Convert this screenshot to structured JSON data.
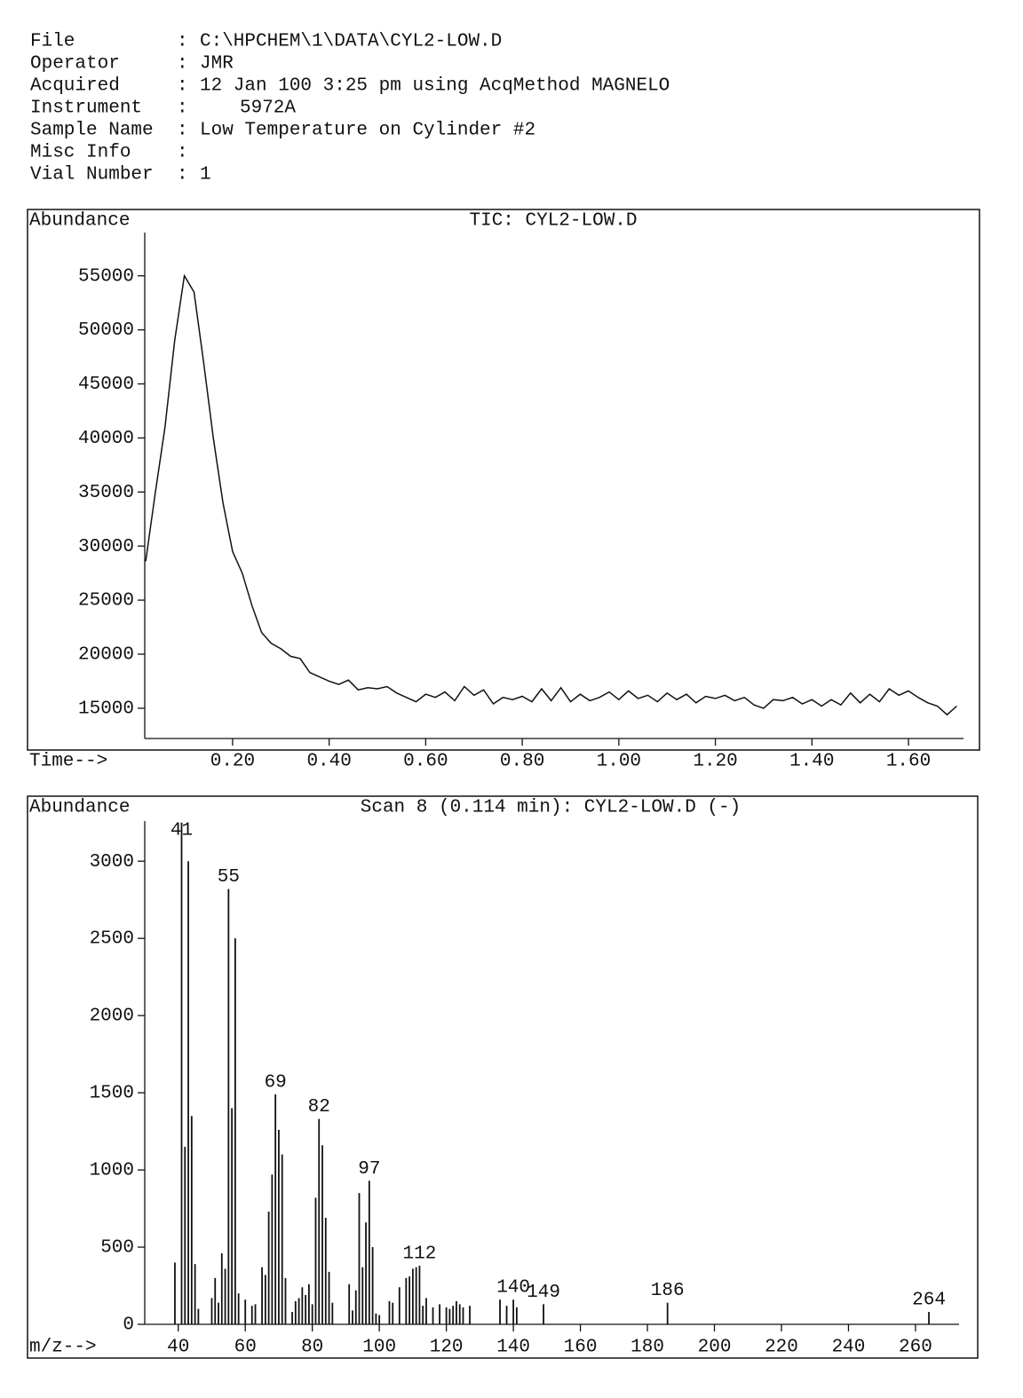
{
  "header": {
    "separator": ":",
    "fields": [
      {
        "label": "File",
        "value": "C:\\HPCHEM\\1\\DATA\\CYL2-LOW.D"
      },
      {
        "label": "Operator",
        "value": "JMR"
      },
      {
        "label": "Acquired",
        "value": "12 Jan 100   3:25 pm using AcqMethod MAGNELO"
      },
      {
        "label": "Instrument",
        "value": "5972A"
      },
      {
        "label": "Sample Name",
        "value": "Low Temperature on Cylinder #2"
      },
      {
        "label": "Misc Info"
      },
      {
        "label": "Vial Number",
        "value": "1"
      }
    ]
  },
  "chart_data": [
    {
      "type": "line",
      "title": "TIC: CYL2-LOW.D",
      "y_label": "Abundance",
      "x_label": "Time-->",
      "color": "#111111",
      "x": [
        0.02,
        0.04,
        0.06,
        0.08,
        0.1,
        0.12,
        0.14,
        0.16,
        0.18,
        0.2,
        0.22,
        0.24,
        0.26,
        0.28,
        0.3,
        0.32,
        0.34,
        0.36,
        0.38,
        0.4,
        0.42,
        0.44,
        0.46,
        0.48,
        0.5,
        0.52,
        0.54,
        0.56,
        0.58,
        0.6,
        0.62,
        0.64,
        0.66,
        0.68,
        0.7,
        0.72,
        0.74,
        0.76,
        0.78,
        0.8,
        0.82,
        0.84,
        0.86,
        0.88,
        0.9,
        0.92,
        0.94,
        0.96,
        0.98,
        1.0,
        1.02,
        1.04,
        1.06,
        1.08,
        1.1,
        1.12,
        1.14,
        1.16,
        1.18,
        1.2,
        1.22,
        1.24,
        1.26,
        1.28,
        1.3,
        1.32,
        1.34,
        1.36,
        1.38,
        1.4,
        1.42,
        1.44,
        1.46,
        1.48,
        1.5,
        1.52,
        1.54,
        1.56,
        1.58,
        1.6,
        1.62,
        1.64,
        1.66,
        1.68,
        1.7
      ],
      "values": [
        28600,
        35000,
        41000,
        49000,
        55000,
        53500,
        47000,
        40000,
        34000,
        29500,
        27500,
        24500,
        22000,
        21000,
        20500,
        19800,
        19600,
        18300,
        17900,
        17500,
        17200,
        17600,
        16700,
        16900,
        16800,
        17000,
        16400,
        16000,
        15600,
        16300,
        16000,
        16500,
        15700,
        17000,
        16200,
        16700,
        15400,
        16000,
        15800,
        16100,
        15600,
        16800,
        15700,
        16900,
        15600,
        16300,
        15700,
        16000,
        16500,
        15800,
        16600,
        15900,
        16200,
        15600,
        16400,
        15800,
        16300,
        15500,
        16100,
        15900,
        16200,
        15700,
        16000,
        15300,
        15000,
        15800,
        15700,
        16000,
        15400,
        15800,
        15200,
        15800,
        15300,
        16400,
        15500,
        16300,
        15600,
        16800,
        16200,
        16600,
        16000,
        15500,
        15200,
        14400,
        15200
      ],
      "xlim": [
        0.018,
        1.714
      ],
      "ylim": [
        12200,
        59000
      ],
      "xticks": [
        {
          "value": 0.2,
          "label": "0.20"
        },
        {
          "value": 0.4,
          "label": "0.40"
        },
        {
          "value": 0.6,
          "label": "0.60"
        },
        {
          "value": 0.8,
          "label": "0.80"
        },
        {
          "value": 1.0,
          "label": "1.00"
        },
        {
          "value": 1.2,
          "label": "1.20"
        },
        {
          "value": 1.4,
          "label": "1.40"
        },
        {
          "value": 1.6,
          "label": "1.60"
        }
      ],
      "yticks": [
        15000,
        20000,
        25000,
        30000,
        35000,
        40000,
        45000,
        50000,
        55000
      ]
    },
    {
      "type": "bar",
      "title": "Scan 8 (0.114 min): CYL2-LOW.D (-)",
      "y_label": "Abundance",
      "x_label": "m/z-->",
      "color": "#111111",
      "x": [
        39,
        41,
        42,
        43,
        44,
        45,
        46,
        50,
        51,
        52,
        53,
        54,
        55,
        56,
        57,
        58,
        60,
        62,
        63,
        65,
        66,
        67,
        68,
        69,
        70,
        71,
        72,
        74,
        75,
        76,
        77,
        78,
        79,
        80,
        81,
        82,
        83,
        84,
        85,
        86,
        91,
        92,
        93,
        94,
        95,
        96,
        97,
        98,
        99,
        100,
        103,
        104,
        106,
        108,
        109,
        110,
        111,
        112,
        113,
        114,
        116,
        118,
        120,
        121,
        122,
        123,
        124,
        125,
        127,
        136,
        138,
        140,
        141,
        149,
        186,
        264
      ],
      "values": [
        400,
        3250,
        1150,
        3000,
        1350,
        390,
        100,
        170,
        300,
        140,
        460,
        360,
        2820,
        1400,
        2500,
        200,
        160,
        120,
        130,
        370,
        320,
        730,
        970,
        1490,
        1260,
        1100,
        300,
        80,
        150,
        170,
        240,
        190,
        260,
        130,
        820,
        1330,
        1160,
        690,
        340,
        140,
        260,
        90,
        220,
        850,
        370,
        660,
        930,
        500,
        70,
        60,
        150,
        140,
        240,
        300,
        310,
        360,
        370,
        380,
        120,
        170,
        110,
        130,
        110,
        100,
        120,
        150,
        130,
        110,
        120,
        160,
        120,
        160,
        110,
        130,
        140,
        80
      ],
      "peak_labels": [
        41,
        55,
        69,
        82,
        97,
        112,
        140,
        149,
        186,
        264
      ],
      "xlim": [
        30,
        273
      ],
      "ylim": [
        0,
        3260
      ],
      "xticks": [
        40,
        60,
        80,
        100,
        120,
        140,
        160,
        180,
        200,
        220,
        240,
        260
      ],
      "yticks": [
        0,
        500,
        1000,
        1500,
        2000,
        2500,
        3000
      ]
    }
  ]
}
